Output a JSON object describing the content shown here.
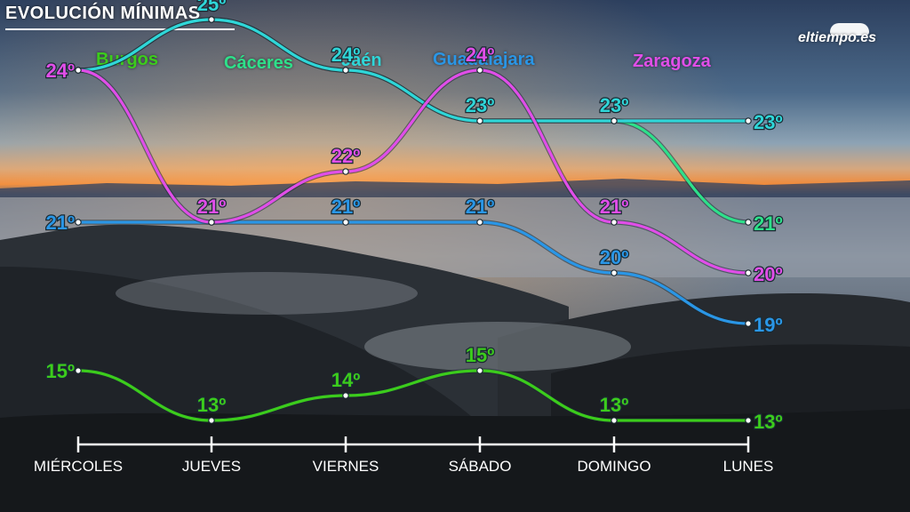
{
  "title": "EVOLUCIÓN MÍNIMAS",
  "logo": {
    "text": "eltiempo.es"
  },
  "legend": [
    {
      "name": "Burgos",
      "color": "#3ccc1c"
    },
    {
      "name": "Cáceres",
      "color": "#2ee08a"
    },
    {
      "name": "Jaén",
      "color": "#2fd6d8"
    },
    {
      "name": "Guadalajara",
      "color": "#2a96e6"
    },
    {
      "name": "Zaragoza",
      "color": "#e04ee8"
    }
  ],
  "chart_data": {
    "type": "line",
    "categories": [
      "MIÉRCOLES",
      "JUEVES",
      "VIERNES",
      "SÁBADO",
      "DOMINGO",
      "LUNES"
    ],
    "label_suffix": "º",
    "series": [
      {
        "name": "Burgos",
        "color": "#3ccc1c",
        "values": [
          15,
          13,
          14,
          15,
          13,
          13
        ]
      },
      {
        "name": "Cáceres",
        "color": "#2ee08a",
        "values": [
          24,
          25,
          24,
          23,
          23,
          21
        ]
      },
      {
        "name": "Jaén",
        "color": "#2fd6d8",
        "values": [
          24,
          25,
          24,
          23,
          23,
          23
        ]
      },
      {
        "name": "Guadalajara",
        "color": "#2a96e6",
        "values": [
          21,
          21,
          21,
          21,
          20,
          19
        ]
      },
      {
        "name": "Zaragoza",
        "color": "#e04ee8",
        "values": [
          24,
          21,
          22,
          24,
          21,
          20
        ]
      }
    ],
    "data_labels": [
      {
        "series": "Burgos",
        "index": 0,
        "text": "15º"
      },
      {
        "series": "Burgos",
        "index": 1,
        "text": "13º"
      },
      {
        "series": "Burgos",
        "index": 2,
        "text": "14º"
      },
      {
        "series": "Burgos",
        "index": 3,
        "text": "15º"
      },
      {
        "series": "Burgos",
        "index": 4,
        "text": "13º"
      },
      {
        "series": "Burgos",
        "index": 5,
        "text": "13º"
      },
      {
        "series": "Cáceres",
        "index": 5,
        "text": "21º"
      },
      {
        "series": "Jaén",
        "index": 1,
        "text": "25º"
      },
      {
        "series": "Jaén",
        "index": 2,
        "text": "24º"
      },
      {
        "series": "Jaén",
        "index": 3,
        "text": "23º"
      },
      {
        "series": "Jaén",
        "index": 4,
        "text": "23º"
      },
      {
        "series": "Jaén",
        "index": 5,
        "text": "23º"
      },
      {
        "series": "Guadalajara",
        "index": 0,
        "text": "21º"
      },
      {
        "series": "Guadalajara",
        "index": 2,
        "text": "21º"
      },
      {
        "series": "Guadalajara",
        "index": 3,
        "text": "21º"
      },
      {
        "series": "Guadalajara",
        "index": 4,
        "text": "20º"
      },
      {
        "series": "Guadalajara",
        "index": 5,
        "text": "19º"
      },
      {
        "series": "Zaragoza",
        "index": 0,
        "text": "24º"
      },
      {
        "series": "Zaragoza",
        "index": 1,
        "text": "21º"
      },
      {
        "series": "Zaragoza",
        "index": 2,
        "text": "22º"
      },
      {
        "series": "Zaragoza",
        "index": 3,
        "text": "24º"
      },
      {
        "series": "Zaragoza",
        "index": 4,
        "text": "21º"
      },
      {
        "series": "Zaragoza",
        "index": 5,
        "text": "20º"
      }
    ],
    "grid": false,
    "legend_position": "top"
  }
}
